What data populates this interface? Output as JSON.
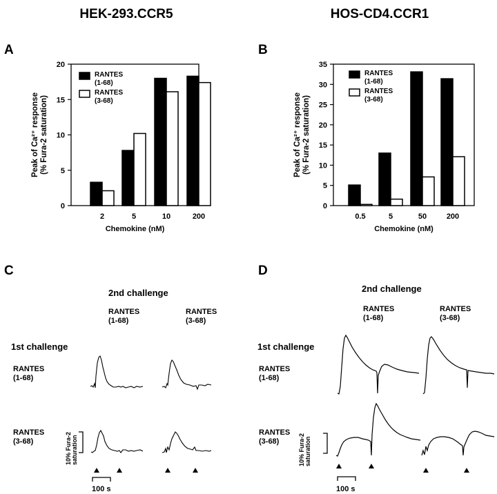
{
  "headers": {
    "left": "HEK-293.CCR5",
    "right": "HOS-CD4.CCR1"
  },
  "panel_letters": {
    "a": "A",
    "b": "B",
    "c": "C",
    "d": "D"
  },
  "chart_data": [
    {
      "panel": "A",
      "type": "bar",
      "categories": [
        "2",
        "5",
        "10",
        "200"
      ],
      "series": [
        {
          "name": "RANTES (1-68)",
          "values": [
            3.3,
            7.8,
            18.0,
            18.3
          ],
          "color": "#000000"
        },
        {
          "name": "RANTES (3-68)",
          "values": [
            2.1,
            10.2,
            16.1,
            17.4
          ],
          "color": "#ffffff"
        }
      ],
      "legend": [
        [
          "RANTES",
          "(1-68)"
        ],
        [
          "RANTES",
          "(3-68)"
        ]
      ],
      "xlabel": "Chemokine (nM)",
      "ylabel": [
        "Peak of Ca²⁺ response",
        "(% Fura-2 saturation)"
      ],
      "ylim": [
        0,
        20
      ],
      "yticks": [
        0,
        5,
        10,
        15,
        20
      ],
      "legend_position": "top-left",
      "grid": false
    },
    {
      "panel": "B",
      "type": "bar",
      "categories": [
        "0.5",
        "5",
        "50",
        "200"
      ],
      "series": [
        {
          "name": "RANTES (1-68)",
          "values": [
            5.1,
            13.0,
            33.1,
            31.4
          ],
          "color": "#000000"
        },
        {
          "name": "RANTES (3-68)",
          "values": [
            0.3,
            1.6,
            7.1,
            12.1
          ],
          "color": "#ffffff"
        }
      ],
      "legend": [
        [
          "RANTES",
          "(1-68)"
        ],
        [
          "RANTES",
          "(3-68)"
        ]
      ],
      "xlabel": "Chemokine (nM)",
      "ylabel": [
        "Peak of Ca²⁺ response",
        "(% Fura-2 saturation)"
      ],
      "ylim": [
        0,
        35
      ],
      "yticks": [
        0,
        5,
        10,
        15,
        20,
        25,
        30,
        35
      ],
      "legend_position": "top-left",
      "grid": false
    }
  ],
  "traces": {
    "second_challenge_label": "2nd challenge",
    "first_challenge_label": "1st challenge",
    "col_labels": [
      [
        "RANTES",
        "(1-68)"
      ],
      [
        "RANTES",
        "(3-68)"
      ]
    ],
    "row_labels": [
      [
        "RANTES",
        "(1-68)"
      ],
      [
        "RANTES",
        "(3-68)"
      ]
    ],
    "scale_label": [
      "10% Fura-2",
      "saturation"
    ],
    "time_label": "100 s"
  }
}
